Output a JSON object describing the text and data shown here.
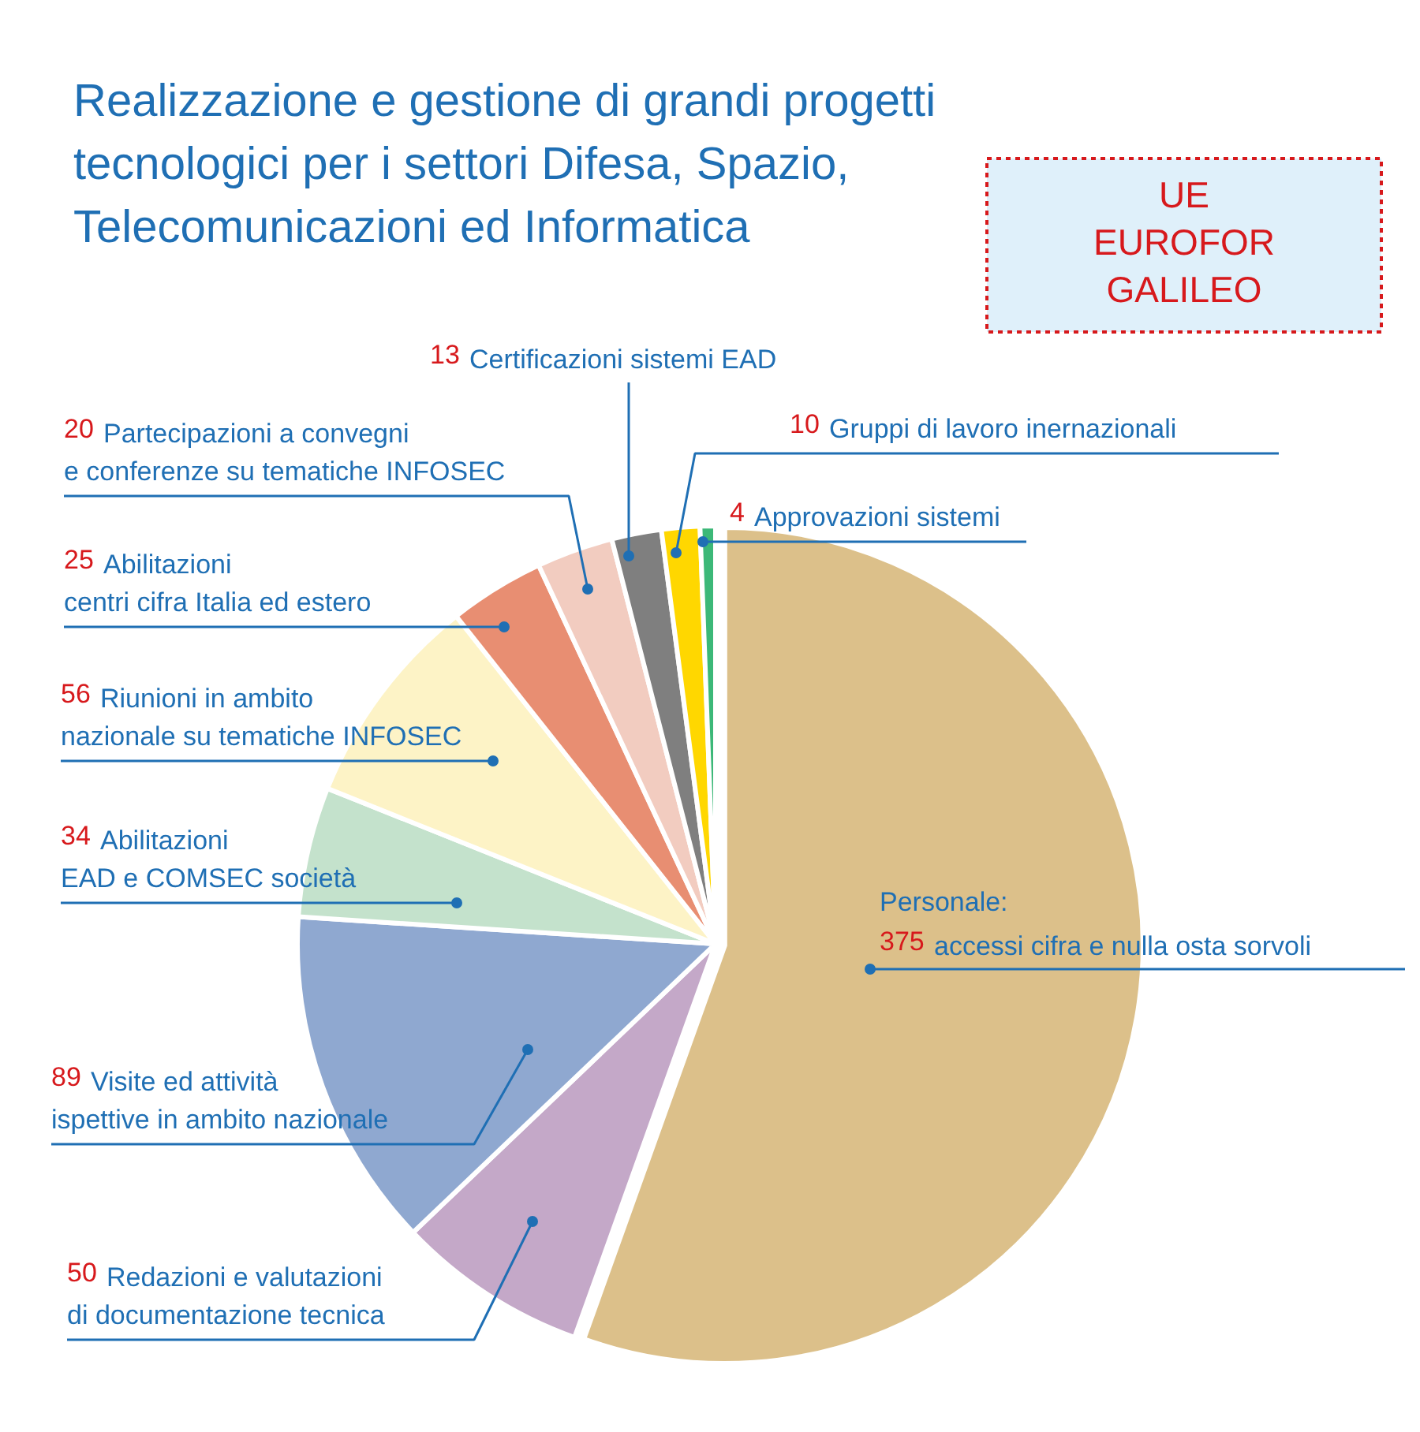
{
  "chart_data": {
    "type": "pie",
    "title": "Realizzazione e gestione di grandi progetti tecnologici per i settori Difesa, Spazio, Telecomunicazioni ed Informatica",
    "categories": [
      "accessi cifra e nulla osta sorvoli",
      "Redazioni e valutazioni di documentazione tecnica",
      "Visite ed attività ispettive in ambito nazionale",
      "Abilitazioni EAD e COMSEC società",
      "Riunioni in ambito nazionale su tematiche INFOSEC",
      "Abilitazioni centri cifra Italia ed estero",
      "Partecipazioni a convegni e conferenze su tematiche INFOSEC",
      "Certificazioni sistemi EAD",
      "Gruppi di lavoro inernazionali",
      "Approvazioni sistemi"
    ],
    "values": [
      375,
      50,
      89,
      34,
      56,
      25,
      20,
      13,
      10,
      4
    ],
    "colors": [
      "#dcc08a",
      "#c4a8c8",
      "#8fa8d0",
      "#c4e2cc",
      "#fdf3c6",
      "#e88e72",
      "#f2ccc0",
      "#7f7f7f",
      "#ffd700",
      "#3cb878"
    ],
    "data_labels": true,
    "annotations": [
      "Personale:",
      "UE EUROFOR GALILEO"
    ]
  }
}
